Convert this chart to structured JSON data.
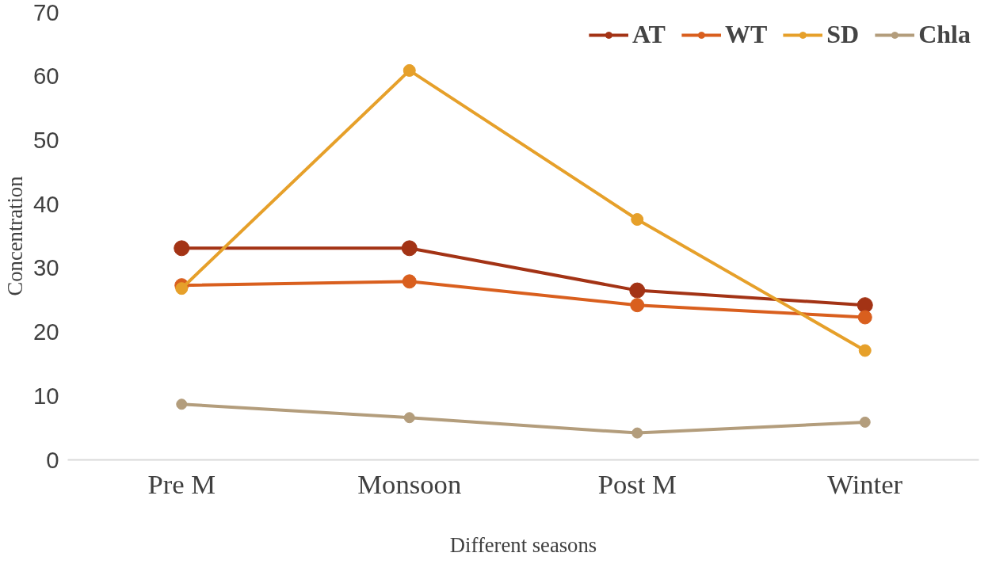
{
  "chart_data": {
    "type": "line",
    "xlabel": "Different seasons",
    "ylabel": "Concentration",
    "categories": [
      "Pre M",
      "Monsoon",
      "Post M",
      "Winter"
    ],
    "series": [
      {
        "name": "AT",
        "color": "#a33315",
        "values": [
          33.1,
          33.1,
          26.5,
          24.2
        ]
      },
      {
        "name": "WT",
        "color": "#d95f1e",
        "values": [
          27.3,
          27.9,
          24.2,
          22.3
        ]
      },
      {
        "name": "SD",
        "color": "#e6a02a",
        "values": [
          26.8,
          60.9,
          37.6,
          17.1
        ]
      },
      {
        "name": "Chla",
        "color": "#b39d7c",
        "values": [
          8.7,
          6.6,
          4.2,
          5.9
        ]
      }
    ],
    "ylim": [
      0,
      70
    ],
    "yticks": [
      0,
      10,
      20,
      30,
      40,
      50,
      60,
      70
    ],
    "grid": false,
    "legend": "top right",
    "marker": "circle",
    "line_style": "solid"
  }
}
